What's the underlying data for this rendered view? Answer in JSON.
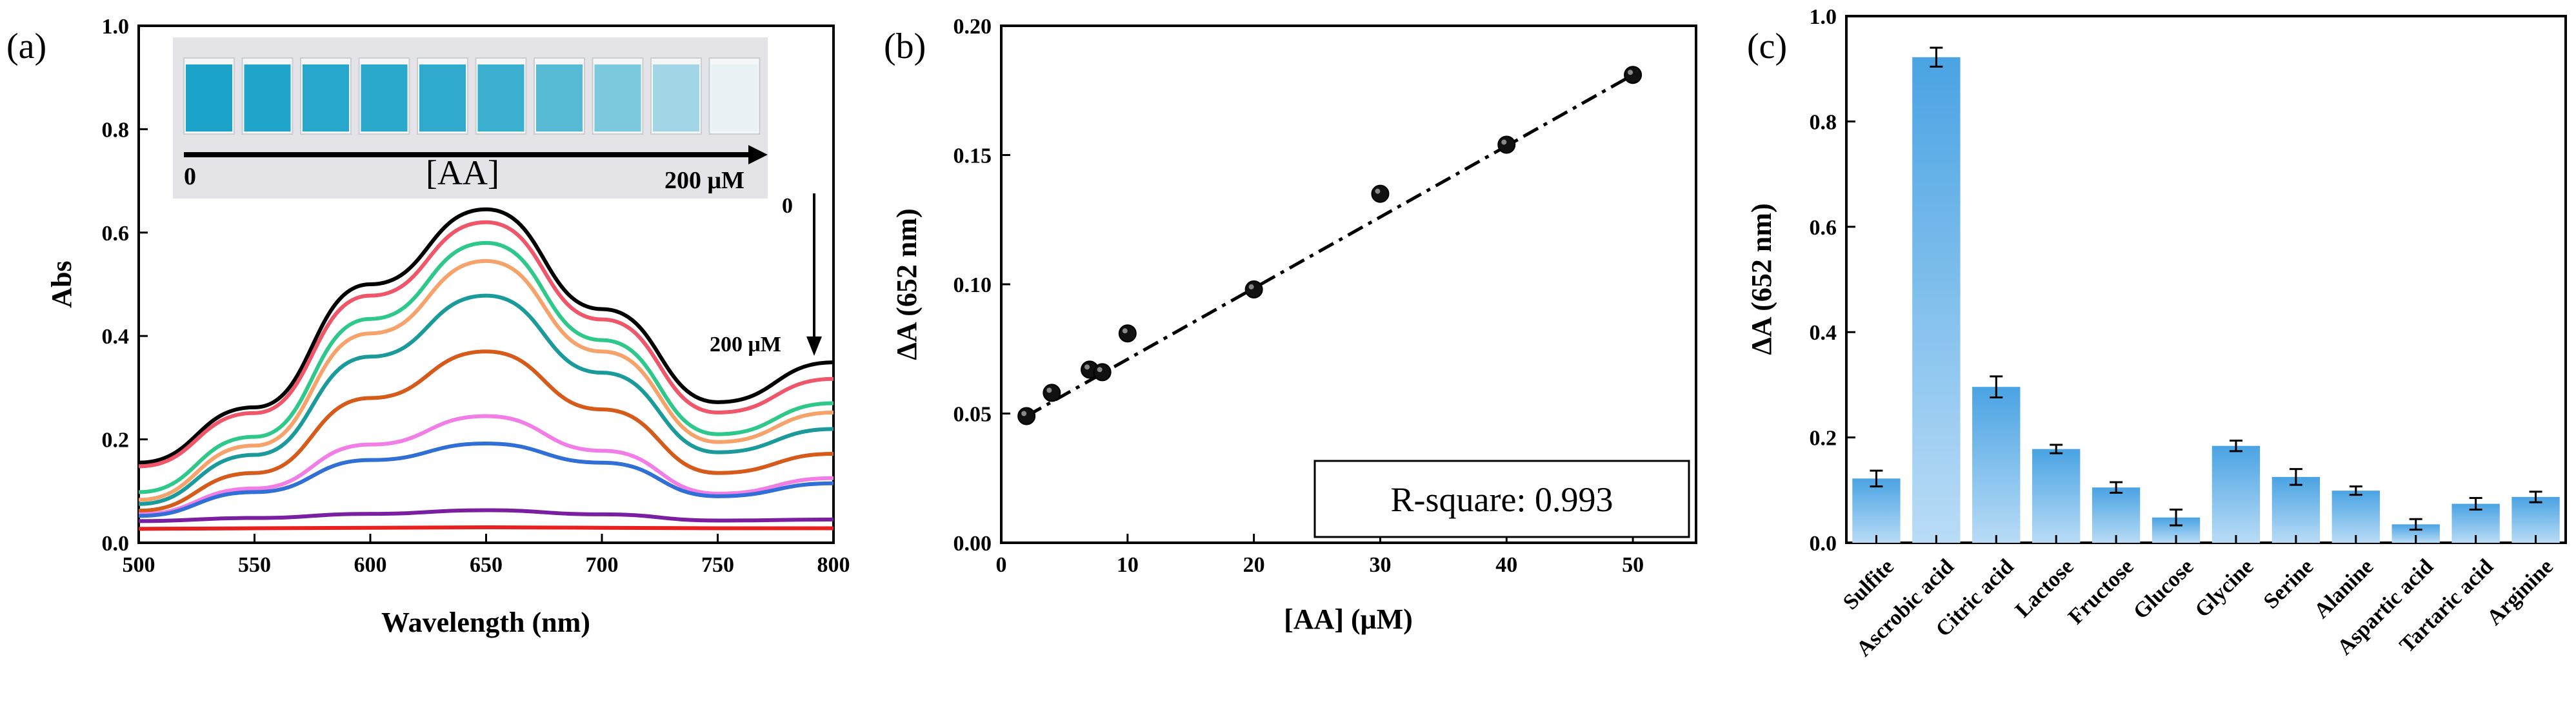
{
  "panels": {
    "a": {
      "label": "(a)"
    },
    "b": {
      "label": "(b)"
    },
    "c": {
      "label": "(c)"
    }
  },
  "colors": {
    "bar_top": "#4aa3e3",
    "bar_bottom": "#b9dcf6",
    "cuvette_blue": "#1aa2c8",
    "photo_bg": "#e4e4e8"
  },
  "inset_photo": {
    "cuvette_count": 10,
    "start_label": "0",
    "axis_label": "[AA]",
    "end_label": "200 μM",
    "cuvette_intensity": [
      1.0,
      0.97,
      0.95,
      0.93,
      0.9,
      0.85,
      0.72,
      0.55,
      0.38,
      0.04
    ]
  },
  "chart_data": [
    {
      "type": "line",
      "xlabel": "Wavelength (nm)",
      "ylabel": "Abs",
      "xlim": [
        500,
        800
      ],
      "ylim": [
        0,
        1.0
      ],
      "xticks": [
        500,
        550,
        600,
        650,
        700,
        750,
        800
      ],
      "yticks": [
        0.0,
        0.2,
        0.4,
        0.6,
        0.8,
        1.0
      ],
      "tick_labels_x": [
        "500",
        "550",
        "600",
        "650",
        "700",
        "750",
        "800"
      ],
      "tick_labels_y": [
        "0.0",
        "0.2",
        "0.4",
        "0.6",
        "0.8",
        "1.0"
      ],
      "annotation_top": "0",
      "annotation_bottom": "200 μM",
      "series": [
        {
          "color": "#000000",
          "x": [
            500,
            550,
            600,
            650,
            700,
            750,
            800
          ],
          "y": [
            0.155,
            0.262,
            0.5,
            0.645,
            0.452,
            0.272,
            0.349
          ]
        },
        {
          "color": "#f0566a",
          "x": [
            500,
            550,
            600,
            650,
            700,
            750,
            800
          ],
          "y": [
            0.148,
            0.251,
            0.478,
            0.62,
            0.432,
            0.252,
            0.317
          ]
        },
        {
          "color": "#2ec98a",
          "x": [
            500,
            550,
            600,
            650,
            700,
            750,
            800
          ],
          "y": [
            0.098,
            0.205,
            0.433,
            0.58,
            0.392,
            0.21,
            0.27
          ]
        },
        {
          "color": "#f5a36b",
          "x": [
            500,
            550,
            600,
            650,
            700,
            750,
            800
          ],
          "y": [
            0.083,
            0.188,
            0.405,
            0.545,
            0.37,
            0.195,
            0.252
          ]
        },
        {
          "color": "#1a9a9a",
          "x": [
            500,
            550,
            600,
            650,
            700,
            750,
            800
          ],
          "y": [
            0.075,
            0.17,
            0.36,
            0.478,
            0.329,
            0.175,
            0.22
          ]
        },
        {
          "color": "#d65a1a",
          "x": [
            500,
            550,
            600,
            650,
            700,
            750,
            800
          ],
          "y": [
            0.062,
            0.135,
            0.28,
            0.37,
            0.258,
            0.135,
            0.172
          ]
        },
        {
          "color": "#f27de6",
          "x": [
            500,
            550,
            600,
            650,
            700,
            750,
            800
          ],
          "y": [
            0.055,
            0.105,
            0.19,
            0.245,
            0.178,
            0.095,
            0.125
          ]
        },
        {
          "color": "#2f6fd6",
          "x": [
            500,
            550,
            600,
            650,
            700,
            750,
            800
          ],
          "y": [
            0.052,
            0.098,
            0.16,
            0.192,
            0.155,
            0.09,
            0.115
          ]
        },
        {
          "color": "#7a1fa2",
          "x": [
            500,
            550,
            600,
            650,
            700,
            750,
            800
          ],
          "y": [
            0.042,
            0.048,
            0.056,
            0.063,
            0.055,
            0.043,
            0.045
          ]
        },
        {
          "color": "#e82020",
          "x": [
            500,
            550,
            600,
            650,
            700,
            750,
            800
          ],
          "y": [
            0.027,
            0.028,
            0.029,
            0.03,
            0.029,
            0.028,
            0.028
          ]
        }
      ]
    },
    {
      "type": "scatter",
      "xlabel": "[AA] (μM)",
      "ylabel": "ΔA (652 nm)",
      "xlim": [
        0,
        55
      ],
      "ylim": [
        0,
        0.2
      ],
      "xticks": [
        0,
        10,
        20,
        30,
        40,
        50
      ],
      "yticks": [
        0.0,
        0.05,
        0.1,
        0.15,
        0.2
      ],
      "tick_labels_x": [
        "0",
        "10",
        "20",
        "30",
        "40",
        "50"
      ],
      "tick_labels_y": [
        "0.00",
        "0.05",
        "0.10",
        "0.15",
        "0.20"
      ],
      "x": [
        2,
        4,
        7,
        8,
        10,
        20,
        30,
        40,
        50
      ],
      "y": [
        0.049,
        0.058,
        0.067,
        0.066,
        0.081,
        0.098,
        0.135,
        0.154,
        0.181
      ],
      "fit_line": {
        "x": [
          2,
          50
        ],
        "y": [
          0.049,
          0.181
        ]
      },
      "annotation": "R-square: 0.993"
    },
    {
      "type": "bar",
      "xlabel": "",
      "ylabel": "ΔA (652 nm)",
      "ylim": [
        0,
        1.0
      ],
      "yticks": [
        0.0,
        0.2,
        0.4,
        0.6,
        0.8,
        1.0
      ],
      "tick_labels_y": [
        "0.0",
        "0.2",
        "0.4",
        "0.6",
        "0.8",
        "1.0"
      ],
      "categories": [
        "Sulfite",
        "Ascrobic acid",
        "Citric acid",
        "Lactose",
        "Fructose",
        "Glucose",
        "Glycine",
        "Serine",
        "Alanine",
        "Aspartic acid",
        "Tartaric acid",
        "Arginine"
      ],
      "values": [
        0.122,
        0.922,
        0.296,
        0.178,
        0.105,
        0.048,
        0.184,
        0.125,
        0.099,
        0.035,
        0.074,
        0.087
      ],
      "errors": [
        0.015,
        0.018,
        0.02,
        0.008,
        0.01,
        0.015,
        0.01,
        0.015,
        0.008,
        0.01,
        0.011,
        0.01
      ]
    }
  ]
}
